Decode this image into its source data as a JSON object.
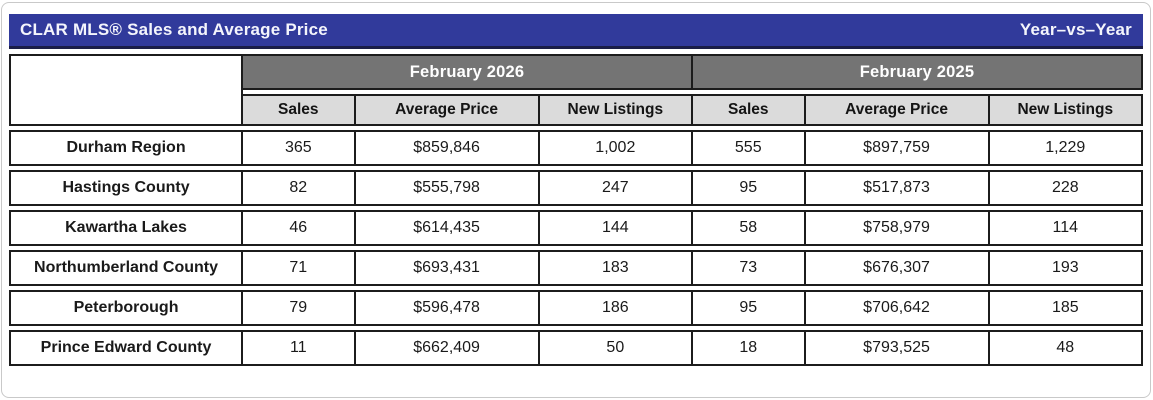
{
  "title_bar": {
    "title": "CLAR MLS® Sales and Average Price",
    "right_label": "Year–vs–Year"
  },
  "chart_data": {
    "type": "table",
    "title": "CLAR MLS® Sales and Average Price",
    "subtitle": "Year–vs–Year",
    "column_groups": [
      "February 2026",
      "February 2025"
    ],
    "columns": [
      "Sales",
      "Average Price",
      "New Listings",
      "Sales",
      "Average Price",
      "New Listings"
    ],
    "rows": [
      {
        "region": "Durham Region",
        "cells": [
          "365",
          "$859,846",
          "1,002",
          "555",
          "$897,759",
          "1,229"
        ]
      },
      {
        "region": "Hastings County",
        "cells": [
          "82",
          "$555,798",
          "247",
          "95",
          "$517,873",
          "228"
        ]
      },
      {
        "region": "Kawartha Lakes",
        "cells": [
          "46",
          "$614,435",
          "144",
          "58",
          "$758,979",
          "114"
        ]
      },
      {
        "region": "Northumberland County",
        "cells": [
          "71",
          "$693,431",
          "183",
          "73",
          "$676,307",
          "193"
        ]
      },
      {
        "region": "Peterborough",
        "cells": [
          "79",
          "$596,478",
          "186",
          "95",
          "$706,642",
          "185"
        ]
      },
      {
        "region": "Prince Edward County",
        "cells": [
          "11",
          "$662,409",
          "50",
          "18",
          "$793,525",
          "48"
        ]
      }
    ]
  },
  "colors": {
    "title_bar_bg": "#313a9b",
    "title_bar_border": "#1a1d47",
    "group_header_bg": "#747474",
    "subheader_bg": "#dbdbdb",
    "table_border": "#1c1c1c",
    "card_border": "#c9c9c9",
    "text": "#1a1a1a",
    "header_text": "#ffffff"
  }
}
